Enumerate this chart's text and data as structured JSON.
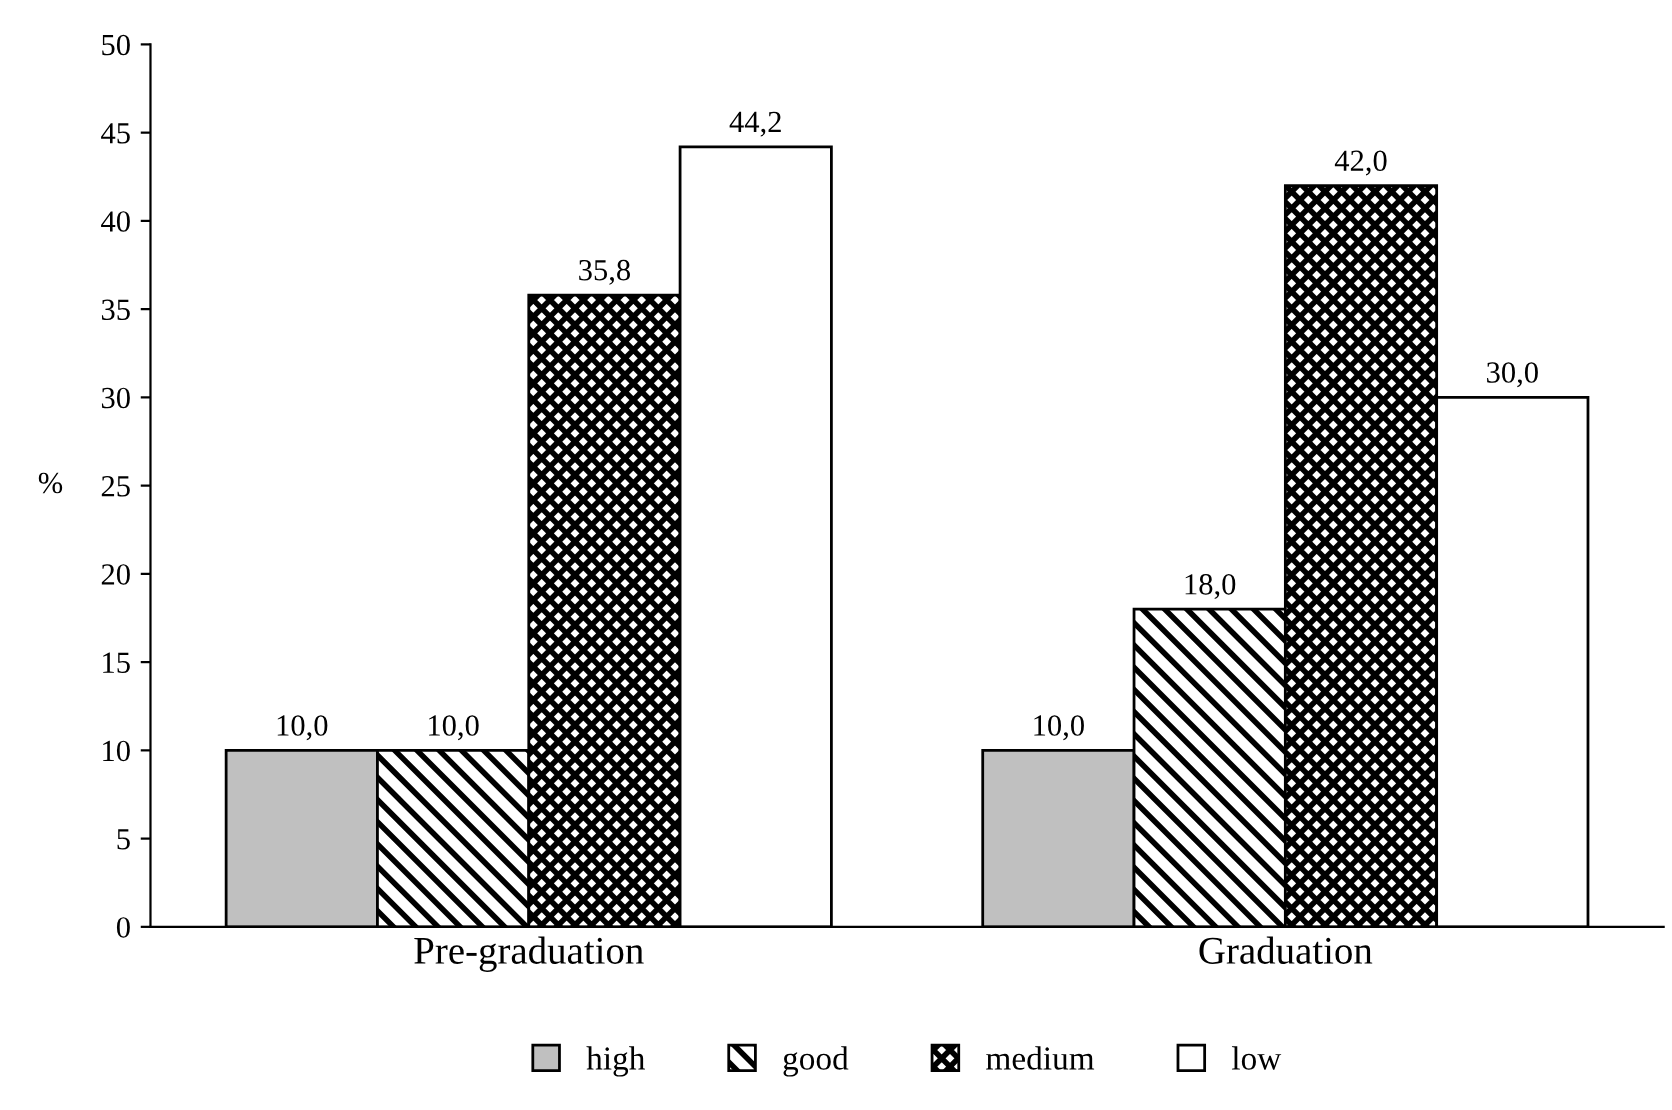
{
  "chart_data": {
    "type": "bar",
    "ylabel": "%",
    "categories": [
      "Pre-graduation",
      "Graduation"
    ],
    "series": [
      {
        "name": "high",
        "color": "#c0c0c0",
        "values": [
          10.0,
          10.0
        ],
        "value_labels": [
          "10,0",
          "10,0"
        ]
      },
      {
        "name": "good",
        "color": "#000000",
        "values": [
          10.0,
          18.0
        ],
        "value_labels": [
          "10,0",
          "18,0"
        ]
      },
      {
        "name": "medium",
        "color": "#000000",
        "values": [
          35.8,
          42.0
        ],
        "value_labels": [
          "35,8",
          "42,0"
        ]
      },
      {
        "name": "low",
        "color": "#ffffff",
        "values": [
          44.2,
          30.0
        ],
        "value_labels": [
          "44,2",
          "30,0"
        ]
      }
    ],
    "ylim": [
      0,
      50
    ],
    "yticks": [
      0,
      5,
      10,
      15,
      20,
      25,
      30,
      35,
      40,
      45,
      50
    ],
    "grid": false,
    "legend": "bottom"
  }
}
